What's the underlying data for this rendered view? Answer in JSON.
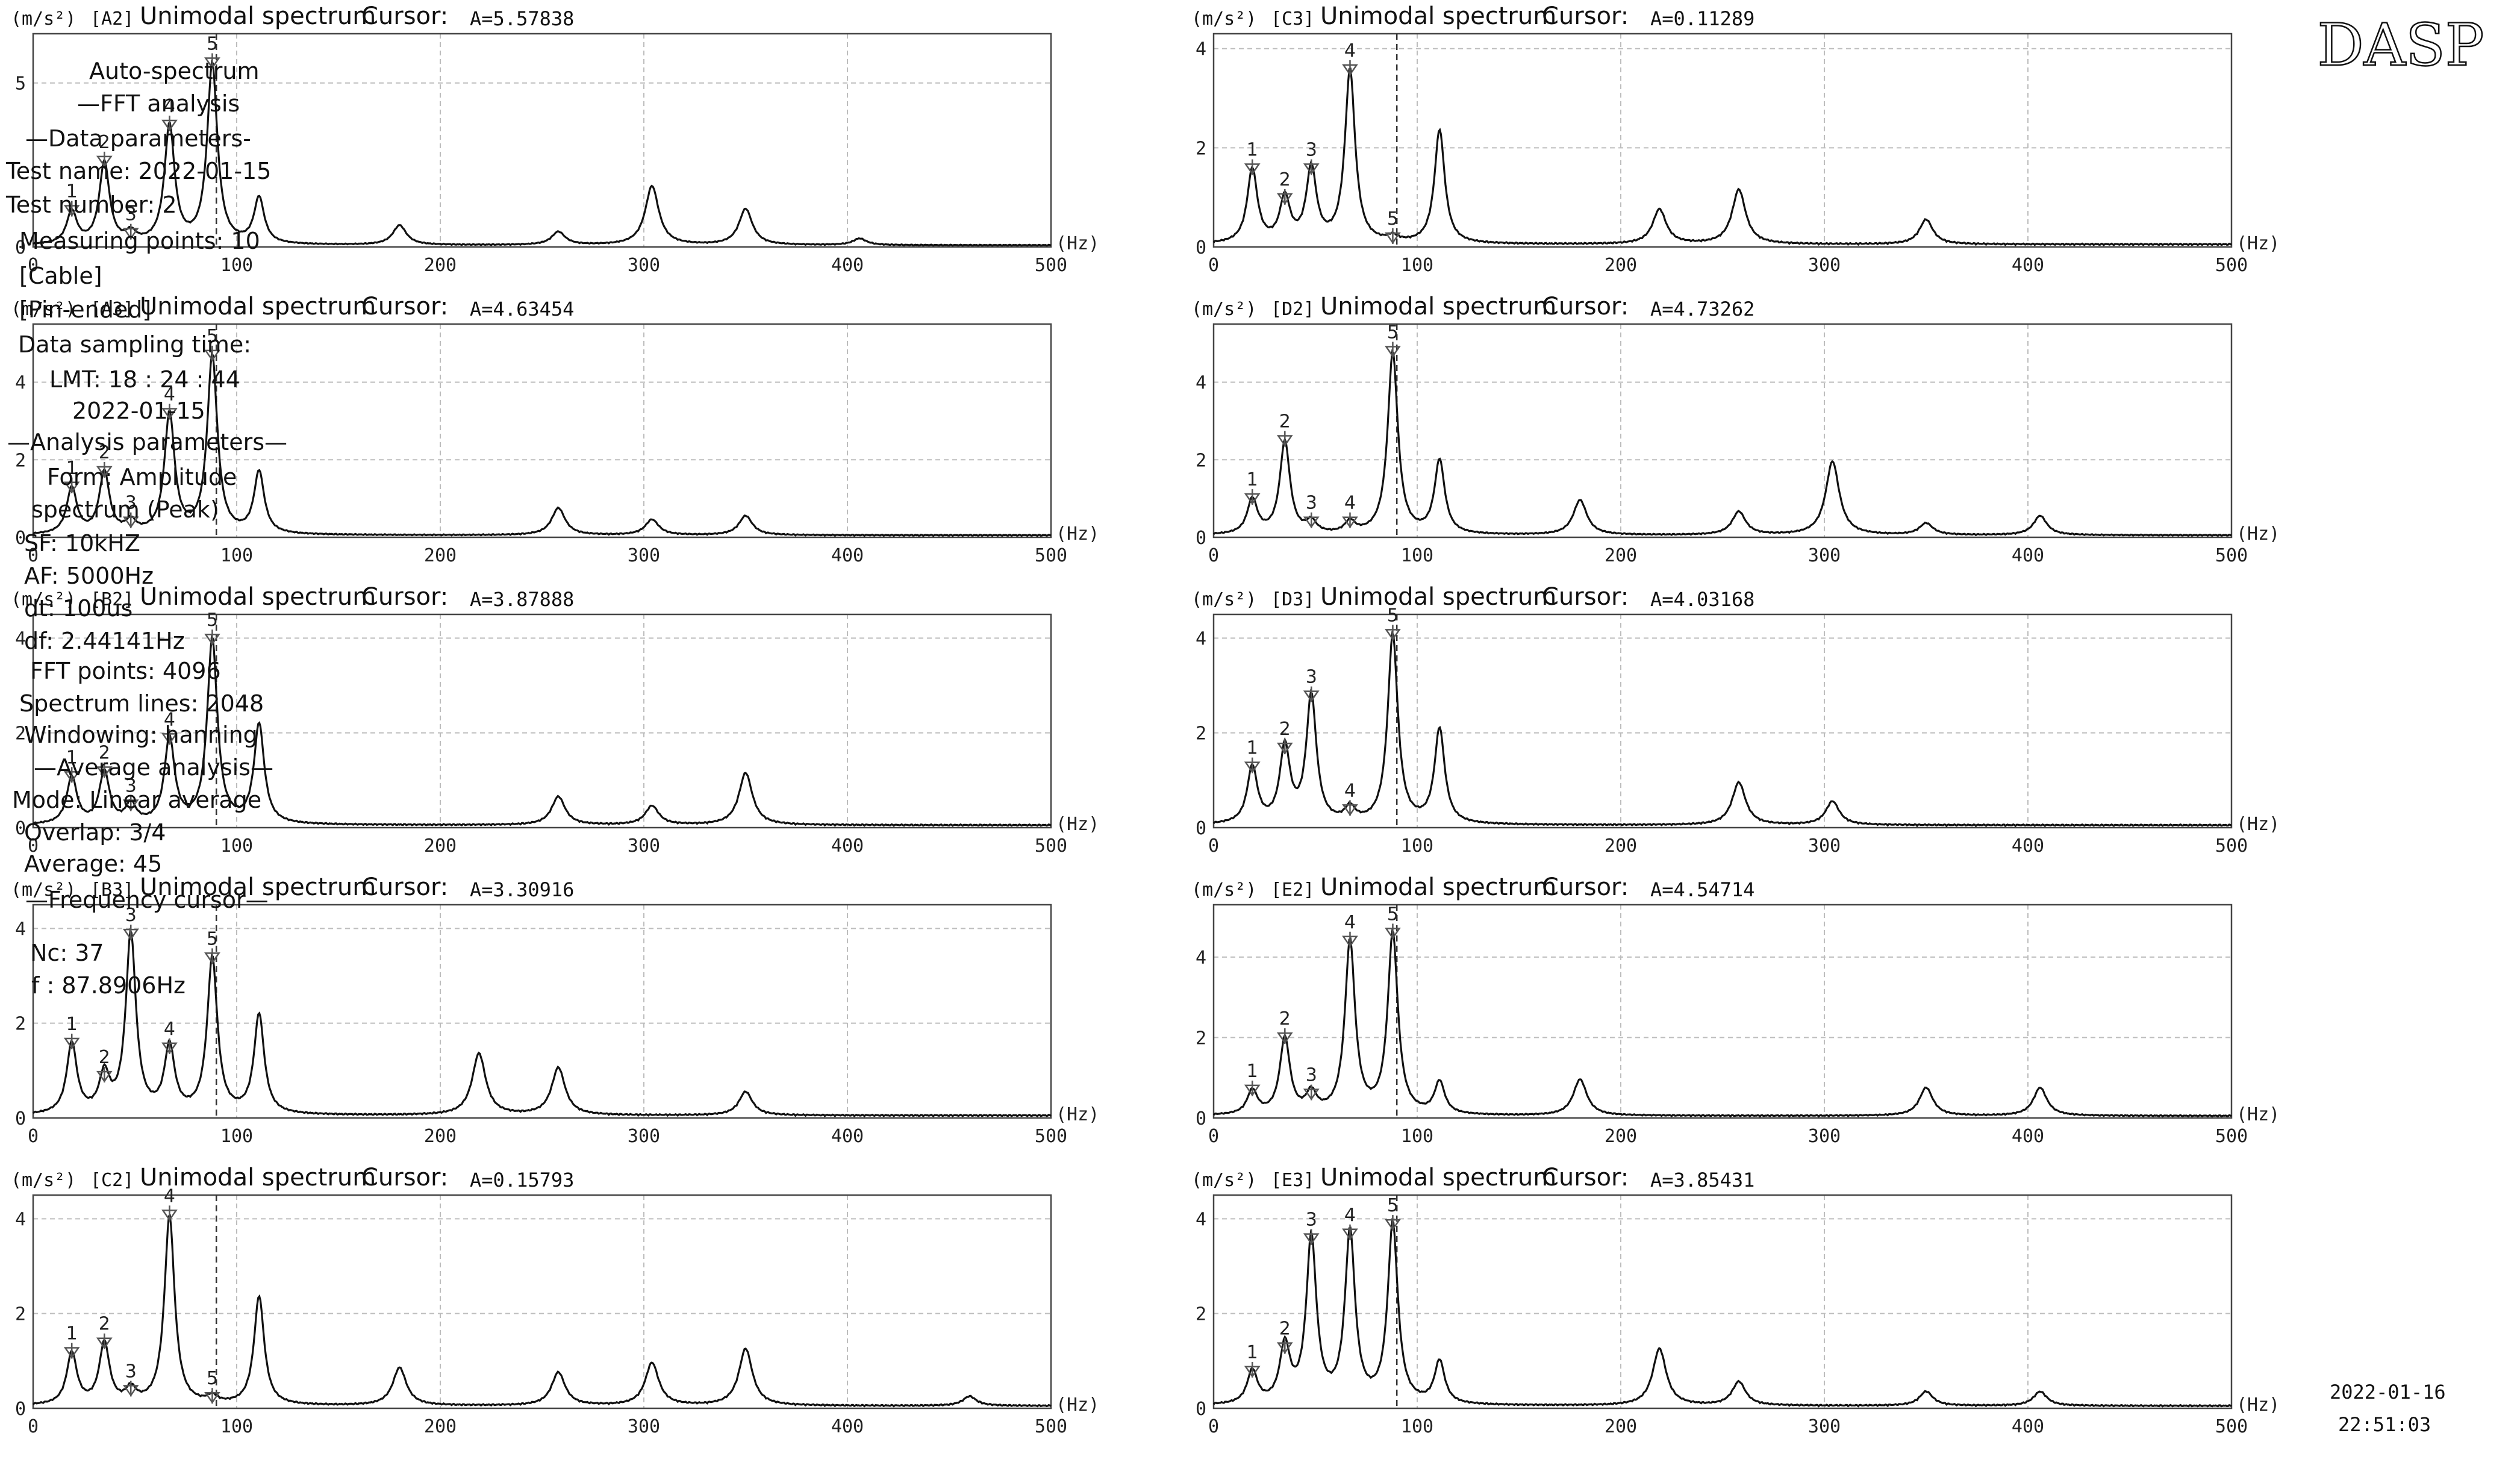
{
  "axis_unit": "(m/s²)",
  "x_unit": "(Hz)",
  "title_text": "Unimodal spectrum",
  "cursor_label": "Cursor:",
  "panel": {
    "logo": "DASP",
    "lines": [
      "Auto-spectrum",
      "—FFT analysis",
      "—Data parameters-",
      "Test name: 2022-01-15",
      "Test number: 2",
      "Measuring points: 10",
      "[Cable]",
      "[Pin-ended]",
      "Data sampling time:",
      "LMT: 18 : 24 : 44",
      "2022-01-15",
      "—Analysis parameters—",
      "Form: Amplitude",
      "spectrum (Peak)",
      "SF: 10kHZ",
      "AF: 5000Hz",
      "dt: 100us",
      "df: 2.44141Hz",
      "FFT points: 4096",
      "Spectrum lines: 2048",
      "Windowing: hanning",
      "—Average analysis—",
      "Mode: Linear average",
      "Overlap: 3/4",
      "Average: 45",
      "—Frequency cursor—",
      "Nc: 37",
      "f : 87.8906Hz"
    ],
    "timestamp_date": "2022-01-16",
    "timestamp_time": "22:51:03"
  },
  "chart_data": [
    {
      "channel": "[A2]",
      "cursor": "A=5.57838",
      "type": "line",
      "xlim": [
        0,
        500
      ],
      "ylim": [
        0,
        6.5
      ],
      "yticks": [
        0,
        5
      ],
      "xticks": [
        0,
        100,
        200,
        300,
        400,
        500
      ],
      "grid": true,
      "cursor_x": 90,
      "peaks": [
        {
          "f": 19,
          "a": 1.0,
          "w": 3
        },
        {
          "f": 35,
          "a": 2.5,
          "w": 3
        },
        {
          "f": 48,
          "a": 0.3,
          "w": 3
        },
        {
          "f": 67,
          "a": 3.6,
          "w": 3
        },
        {
          "f": 88,
          "a": 5.5,
          "w": 3
        },
        {
          "f": 111,
          "a": 1.4,
          "w": 3
        },
        {
          "f": 180,
          "a": 0.6,
          "w": 4
        },
        {
          "f": 258,
          "a": 0.4,
          "w": 4
        },
        {
          "f": 304,
          "a": 1.8,
          "w": 4
        },
        {
          "f": 350,
          "a": 1.1,
          "w": 4
        },
        {
          "f": 406,
          "a": 0.2,
          "w": 4
        }
      ],
      "markers": [
        {
          "n": "1",
          "f": 19,
          "a": 1.0
        },
        {
          "n": "2",
          "f": 35,
          "a": 2.5
        },
        {
          "n": "3",
          "f": 48,
          "a": 0.3
        },
        {
          "n": "4",
          "f": 67,
          "a": 3.6
        },
        {
          "n": "5",
          "f": 88,
          "a": 5.5
        }
      ]
    },
    {
      "channel": "[A3]",
      "cursor": "A=4.63454",
      "type": "line",
      "xlim": [
        0,
        500
      ],
      "ylim": [
        0,
        5.5
      ],
      "yticks": [
        0,
        2,
        4
      ],
      "xticks": [
        0,
        100,
        200,
        300,
        400,
        500
      ],
      "grid": true,
      "cursor_x": 90,
      "peaks": [
        {
          "f": 19,
          "a": 1.2,
          "w": 3
        },
        {
          "f": 35,
          "a": 1.6,
          "w": 3
        },
        {
          "f": 48,
          "a": 0.3,
          "w": 3
        },
        {
          "f": 67,
          "a": 3.1,
          "w": 3
        },
        {
          "f": 88,
          "a": 4.6,
          "w": 3
        },
        {
          "f": 111,
          "a": 1.6,
          "w": 3
        },
        {
          "f": 258,
          "a": 0.7,
          "w": 4
        },
        {
          "f": 304,
          "a": 0.4,
          "w": 4
        },
        {
          "f": 350,
          "a": 0.5,
          "w": 4
        }
      ],
      "markers": [
        {
          "n": "1",
          "f": 19,
          "a": 1.2
        },
        {
          "n": "2",
          "f": 35,
          "a": 1.6
        },
        {
          "n": "3",
          "f": 48,
          "a": 0.3
        },
        {
          "n": "4",
          "f": 67,
          "a": 3.1
        },
        {
          "n": "5",
          "f": 88,
          "a": 4.6
        }
      ]
    },
    {
      "channel": "[B2]",
      "cursor": "A=3.87888",
      "type": "line",
      "xlim": [
        0,
        500
      ],
      "ylim": [
        0,
        4.5
      ],
      "yticks": [
        0,
        2,
        4
      ],
      "xticks": [
        0,
        100,
        200,
        300,
        400,
        500
      ],
      "grid": true,
      "cursor_x": 90,
      "peaks": [
        {
          "f": 19,
          "a": 1.0,
          "w": 3
        },
        {
          "f": 35,
          "a": 1.1,
          "w": 3
        },
        {
          "f": 48,
          "a": 0.4,
          "w": 3
        },
        {
          "f": 67,
          "a": 1.8,
          "w": 3
        },
        {
          "f": 88,
          "a": 3.9,
          "w": 3
        },
        {
          "f": 111,
          "a": 2.1,
          "w": 3
        },
        {
          "f": 258,
          "a": 0.6,
          "w": 4
        },
        {
          "f": 304,
          "a": 0.4,
          "w": 4
        },
        {
          "f": 350,
          "a": 1.1,
          "w": 4
        }
      ],
      "markers": [
        {
          "n": "1",
          "f": 19,
          "a": 1.0
        },
        {
          "n": "2",
          "f": 35,
          "a": 1.1
        },
        {
          "n": "3",
          "f": 48,
          "a": 0.4
        },
        {
          "n": "4",
          "f": 67,
          "a": 1.8
        },
        {
          "n": "5",
          "f": 88,
          "a": 3.9
        }
      ]
    },
    {
      "channel": "[B3]",
      "cursor": "A=3.30916",
      "type": "line",
      "xlim": [
        0,
        500
      ],
      "ylim": [
        0,
        4.5
      ],
      "yticks": [
        0,
        2,
        4
      ],
      "xticks": [
        0,
        100,
        200,
        300,
        400,
        500
      ],
      "grid": true,
      "cursor_x": 90,
      "peaks": [
        {
          "f": 19,
          "a": 1.5,
          "w": 3
        },
        {
          "f": 35,
          "a": 0.8,
          "w": 3
        },
        {
          "f": 48,
          "a": 3.8,
          "w": 3
        },
        {
          "f": 67,
          "a": 1.4,
          "w": 3
        },
        {
          "f": 88,
          "a": 3.3,
          "w": 3
        },
        {
          "f": 111,
          "a": 2.1,
          "w": 3
        },
        {
          "f": 219,
          "a": 1.3,
          "w": 4
        },
        {
          "f": 258,
          "a": 1.0,
          "w": 4
        },
        {
          "f": 350,
          "a": 0.5,
          "w": 4
        }
      ],
      "markers": [
        {
          "n": "1",
          "f": 19,
          "a": 1.5
        },
        {
          "n": "2",
          "f": 35,
          "a": 0.8
        },
        {
          "n": "3",
          "f": 48,
          "a": 3.8
        },
        {
          "n": "4",
          "f": 67,
          "a": 1.4
        },
        {
          "n": "5",
          "f": 88,
          "a": 3.3
        }
      ]
    },
    {
      "channel": "[C2]",
      "cursor": "A=0.15793",
      "type": "line",
      "xlim": [
        0,
        500
      ],
      "ylim": [
        0,
        4.5
      ],
      "yticks": [
        0,
        2,
        4
      ],
      "xticks": [
        0,
        100,
        200,
        300,
        400,
        500
      ],
      "grid": true,
      "cursor_x": 90,
      "peaks": [
        {
          "f": 19,
          "a": 1.1,
          "w": 3
        },
        {
          "f": 35,
          "a": 1.3,
          "w": 3
        },
        {
          "f": 48,
          "a": 0.3,
          "w": 3
        },
        {
          "f": 67,
          "a": 4.0,
          "w": 3
        },
        {
          "f": 88,
          "a": 0.15,
          "w": 3
        },
        {
          "f": 111,
          "a": 2.3,
          "w": 3
        },
        {
          "f": 180,
          "a": 0.8,
          "w": 4
        },
        {
          "f": 258,
          "a": 0.7,
          "w": 4
        },
        {
          "f": 304,
          "a": 0.9,
          "w": 4
        },
        {
          "f": 350,
          "a": 1.2,
          "w": 4
        },
        {
          "f": 460,
          "a": 0.2,
          "w": 4
        }
      ],
      "markers": [
        {
          "n": "1",
          "f": 19,
          "a": 1.1
        },
        {
          "n": "2",
          "f": 35,
          "a": 1.3
        },
        {
          "n": "3",
          "f": 48,
          "a": 0.3
        },
        {
          "n": "4",
          "f": 67,
          "a": 4.0
        },
        {
          "n": "5",
          "f": 88,
          "a": 0.15
        }
      ]
    },
    {
      "channel": "[C3]",
      "cursor": "A=0.11289",
      "type": "line",
      "xlim": [
        0,
        500
      ],
      "ylim": [
        0,
        4.3
      ],
      "yticks": [
        0,
        2,
        4
      ],
      "xticks": [
        0,
        100,
        200,
        300,
        400,
        500
      ],
      "grid": true,
      "cursor_x": 90,
      "peaks": [
        {
          "f": 19,
          "a": 1.5,
          "w": 3
        },
        {
          "f": 35,
          "a": 0.9,
          "w": 3
        },
        {
          "f": 48,
          "a": 1.5,
          "w": 3
        },
        {
          "f": 67,
          "a": 3.5,
          "w": 3
        },
        {
          "f": 88,
          "a": 0.11,
          "w": 3
        },
        {
          "f": 111,
          "a": 2.3,
          "w": 3
        },
        {
          "f": 219,
          "a": 0.7,
          "w": 4
        },
        {
          "f": 258,
          "a": 1.1,
          "w": 4
        },
        {
          "f": 350,
          "a": 0.5,
          "w": 4
        }
      ],
      "markers": [
        {
          "n": "1",
          "f": 19,
          "a": 1.5
        },
        {
          "n": "2",
          "f": 35,
          "a": 0.9
        },
        {
          "n": "3",
          "f": 48,
          "a": 1.5
        },
        {
          "n": "4",
          "f": 67,
          "a": 3.5
        },
        {
          "n": "5",
          "f": 88,
          "a": 0.11
        }
      ]
    },
    {
      "channel": "[D2]",
      "cursor": "A=4.73262",
      "type": "line",
      "xlim": [
        0,
        500
      ],
      "ylim": [
        0,
        5.5
      ],
      "yticks": [
        0,
        2,
        4
      ],
      "xticks": [
        0,
        100,
        200,
        300,
        400,
        500
      ],
      "grid": true,
      "cursor_x": 90,
      "peaks": [
        {
          "f": 19,
          "a": 0.9,
          "w": 3
        },
        {
          "f": 35,
          "a": 2.4,
          "w": 3
        },
        {
          "f": 48,
          "a": 0.3,
          "w": 3
        },
        {
          "f": 67,
          "a": 0.3,
          "w": 3
        },
        {
          "f": 88,
          "a": 4.7,
          "w": 3
        },
        {
          "f": 111,
          "a": 1.9,
          "w": 3
        },
        {
          "f": 180,
          "a": 0.9,
          "w": 4
        },
        {
          "f": 258,
          "a": 0.6,
          "w": 4
        },
        {
          "f": 304,
          "a": 1.9,
          "w": 4
        },
        {
          "f": 350,
          "a": 0.3,
          "w": 4
        },
        {
          "f": 406,
          "a": 0.5,
          "w": 4
        }
      ],
      "markers": [
        {
          "n": "1",
          "f": 19,
          "a": 0.9
        },
        {
          "n": "2",
          "f": 35,
          "a": 2.4
        },
        {
          "n": "3",
          "f": 48,
          "a": 0.3
        },
        {
          "n": "4",
          "f": 67,
          "a": 0.3
        },
        {
          "n": "5",
          "f": 88,
          "a": 4.7
        }
      ]
    },
    {
      "channel": "[D3]",
      "cursor": "A=4.03168",
      "type": "line",
      "xlim": [
        0,
        500
      ],
      "ylim": [
        0,
        4.5
      ],
      "yticks": [
        0,
        2,
        4
      ],
      "xticks": [
        0,
        100,
        200,
        300,
        400,
        500
      ],
      "grid": true,
      "cursor_x": 90,
      "peaks": [
        {
          "f": 19,
          "a": 1.2,
          "w": 3
        },
        {
          "f": 35,
          "a": 1.6,
          "w": 3
        },
        {
          "f": 48,
          "a": 2.7,
          "w": 3
        },
        {
          "f": 67,
          "a": 0.3,
          "w": 3
        },
        {
          "f": 88,
          "a": 4.0,
          "w": 3
        },
        {
          "f": 111,
          "a": 2.0,
          "w": 3
        },
        {
          "f": 258,
          "a": 0.9,
          "w": 4
        },
        {
          "f": 304,
          "a": 0.5,
          "w": 4
        }
      ],
      "markers": [
        {
          "n": "1",
          "f": 19,
          "a": 1.2
        },
        {
          "n": "2",
          "f": 35,
          "a": 1.6
        },
        {
          "n": "3",
          "f": 48,
          "a": 2.7
        },
        {
          "n": "4",
          "f": 67,
          "a": 0.3
        },
        {
          "n": "5",
          "f": 88,
          "a": 4.0
        }
      ]
    },
    {
      "channel": "[E2]",
      "cursor": "A=4.54714",
      "type": "line",
      "xlim": [
        0,
        500
      ],
      "ylim": [
        0,
        5.3
      ],
      "yticks": [
        0,
        2,
        4
      ],
      "xticks": [
        0,
        100,
        200,
        300,
        400,
        500
      ],
      "grid": true,
      "cursor_x": 90,
      "peaks": [
        {
          "f": 19,
          "a": 0.6,
          "w": 3
        },
        {
          "f": 35,
          "a": 1.9,
          "w": 3
        },
        {
          "f": 48,
          "a": 0.5,
          "w": 3
        },
        {
          "f": 67,
          "a": 4.3,
          "w": 3
        },
        {
          "f": 88,
          "a": 4.5,
          "w": 3
        },
        {
          "f": 111,
          "a": 0.8,
          "w": 3
        },
        {
          "f": 180,
          "a": 0.9,
          "w": 4
        },
        {
          "f": 350,
          "a": 0.7,
          "w": 4
        },
        {
          "f": 406,
          "a": 0.7,
          "w": 4
        }
      ],
      "markers": [
        {
          "n": "1",
          "f": 19,
          "a": 0.6
        },
        {
          "n": "2",
          "f": 35,
          "a": 1.9
        },
        {
          "n": "3",
          "f": 48,
          "a": 0.5
        },
        {
          "n": "4",
          "f": 67,
          "a": 4.3
        },
        {
          "n": "5",
          "f": 88,
          "a": 4.5
        }
      ]
    },
    {
      "channel": "[E3]",
      "cursor": "A=3.85431",
      "type": "line",
      "xlim": [
        0,
        500
      ],
      "ylim": [
        0,
        4.5
      ],
      "yticks": [
        0,
        2,
        4
      ],
      "xticks": [
        0,
        100,
        200,
        300,
        400,
        500
      ],
      "grid": true,
      "cursor_x": 90,
      "peaks": [
        {
          "f": 19,
          "a": 0.7,
          "w": 3
        },
        {
          "f": 35,
          "a": 1.2,
          "w": 3
        },
        {
          "f": 48,
          "a": 3.5,
          "w": 3
        },
        {
          "f": 67,
          "a": 3.6,
          "w": 3
        },
        {
          "f": 88,
          "a": 3.8,
          "w": 3
        },
        {
          "f": 111,
          "a": 0.9,
          "w": 3
        },
        {
          "f": 219,
          "a": 1.2,
          "w": 4
        },
        {
          "f": 258,
          "a": 0.5,
          "w": 4
        },
        {
          "f": 350,
          "a": 0.3,
          "w": 4
        },
        {
          "f": 406,
          "a": 0.3,
          "w": 4
        }
      ],
      "markers": [
        {
          "n": "1",
          "f": 19,
          "a": 0.7
        },
        {
          "n": "2",
          "f": 35,
          "a": 1.2
        },
        {
          "n": "3",
          "f": 48,
          "a": 3.5
        },
        {
          "n": "4",
          "f": 67,
          "a": 3.6
        },
        {
          "n": "5",
          "f": 88,
          "a": 3.8
        }
      ]
    }
  ]
}
